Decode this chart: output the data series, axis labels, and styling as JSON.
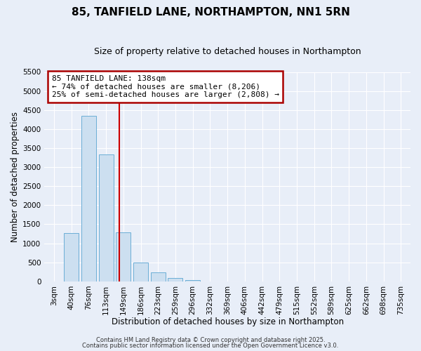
{
  "title": "85, TANFIELD LANE, NORTHAMPTON, NN1 5RN",
  "subtitle": "Size of property relative to detached houses in Northampton",
  "xlabel": "Distribution of detached houses by size in Northampton",
  "ylabel": "Number of detached properties",
  "bar_labels": [
    "3sqm",
    "40sqm",
    "76sqm",
    "113sqm",
    "149sqm",
    "186sqm",
    "223sqm",
    "259sqm",
    "296sqm",
    "332sqm",
    "369sqm",
    "406sqm",
    "442sqm",
    "479sqm",
    "515sqm",
    "552sqm",
    "589sqm",
    "625sqm",
    "662sqm",
    "698sqm",
    "735sqm"
  ],
  "bar_values": [
    0,
    1270,
    4350,
    3330,
    1290,
    500,
    230,
    90,
    30,
    0,
    0,
    0,
    0,
    0,
    0,
    0,
    0,
    0,
    0,
    0,
    0
  ],
  "bar_color": "#ccdff0",
  "bar_edge_color": "#6baed6",
  "vline_x_index": 3.78,
  "vline_color": "#cc0000",
  "ylim": [
    0,
    5500
  ],
  "yticks": [
    0,
    500,
    1000,
    1500,
    2000,
    2500,
    3000,
    3500,
    4000,
    4500,
    5000,
    5500
  ],
  "annotation_title": "85 TANFIELD LANE: 138sqm",
  "annotation_line1": "← 74% of detached houses are smaller (8,206)",
  "annotation_line2": "25% of semi-detached houses are larger (2,808) →",
  "annotation_box_edgecolor": "#aa0000",
  "bg_color": "#e8eef8",
  "grid_color": "#ffffff",
  "footer1": "Contains HM Land Registry data © Crown copyright and database right 2025.",
  "footer2": "Contains public sector information licensed under the Open Government Licence v3.0.",
  "title_fontsize": 11,
  "subtitle_fontsize": 9,
  "axis_label_fontsize": 8.5,
  "tick_fontsize": 7.5,
  "annotation_fontsize": 8,
  "footer_fontsize": 6
}
